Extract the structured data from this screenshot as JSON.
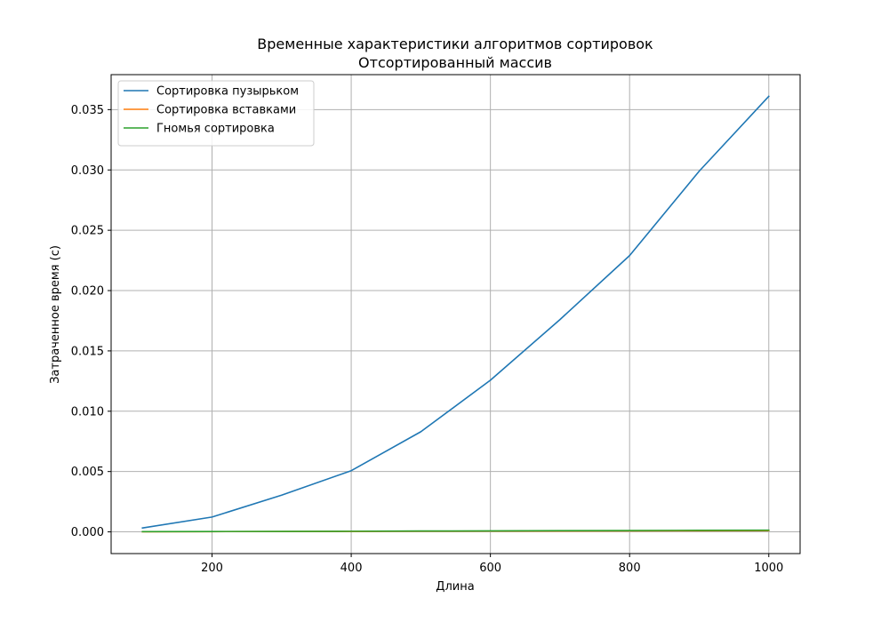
{
  "chart_data": {
    "type": "line",
    "title": "Временные характеристики алгоритмов сортировок",
    "subtitle": "Отсортированный массив",
    "xlabel": "Длина",
    "ylabel": "Затраченное время (с)",
    "xlim": [
      55,
      1045
    ],
    "ylim": [
      -0.0018,
      0.0379
    ],
    "xticks": [
      200,
      400,
      600,
      800,
      1000
    ],
    "xtick_labels": [
      "200",
      "400",
      "600",
      "800",
      "1000"
    ],
    "yticks": [
      0.0,
      0.005,
      0.01,
      0.015,
      0.02,
      0.025,
      0.03,
      0.035
    ],
    "ytick_labels": [
      "0.000",
      "0.005",
      "0.010",
      "0.015",
      "0.020",
      "0.025",
      "0.030",
      "0.035"
    ],
    "grid": true,
    "legend_position": "top-left",
    "x": [
      100,
      200,
      300,
      400,
      500,
      600,
      700,
      800,
      900,
      1000
    ],
    "series": [
      {
        "name": "Сортировка пузырьком",
        "color": "#1f77b4",
        "values": [
          0.00032,
          0.00123,
          0.00304,
          0.00507,
          0.0083,
          0.01257,
          0.0176,
          0.0229,
          0.0299,
          0.0361
        ]
      },
      {
        "name": "Сортировка вставками",
        "color": "#ff7f0e",
        "values": [
          1e-05,
          2e-05,
          3e-05,
          4e-05,
          5e-05,
          6e-05,
          7e-05,
          8e-05,
          9e-05,
          0.0001
        ]
      },
      {
        "name": "Гномья сортировка",
        "color": "#2ca02c",
        "values": [
          2e-05,
          3e-05,
          4e-05,
          5e-05,
          7e-05,
          8e-05,
          0.0001,
          0.00011,
          0.00013,
          0.00014
        ]
      }
    ]
  }
}
